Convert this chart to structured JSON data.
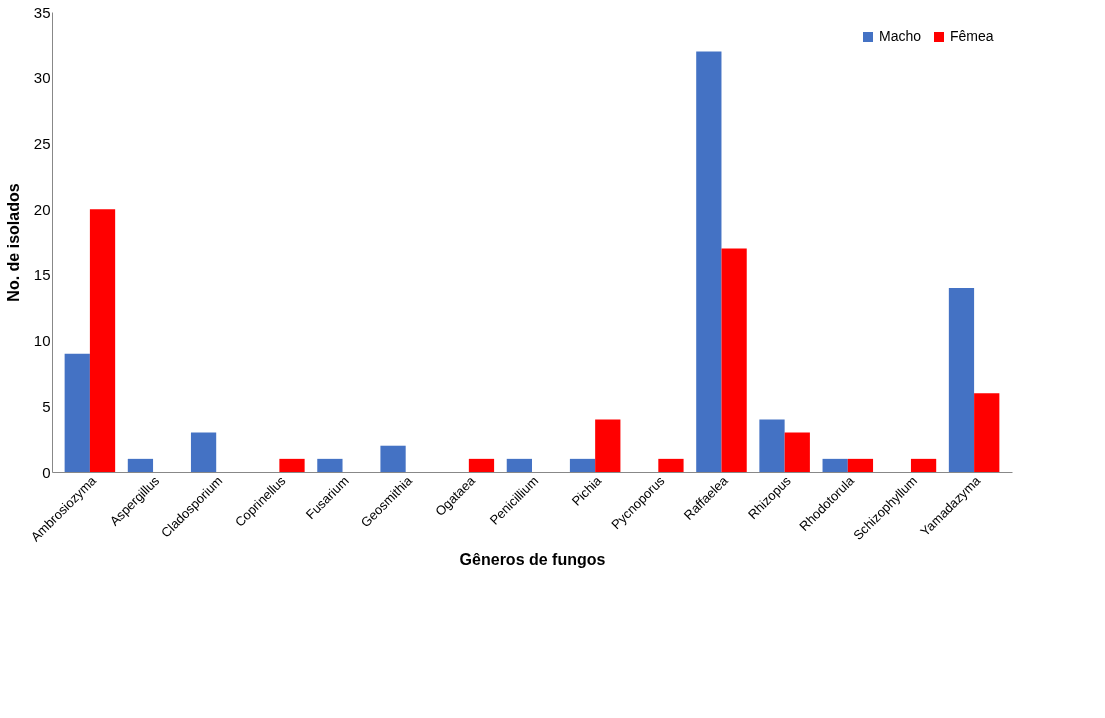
{
  "chart_data": {
    "type": "bar",
    "xlabel": "Gêneros de fungos",
    "ylabel": "No. de isolados",
    "categories": [
      "Ambrosiozyma",
      "Aspergillus",
      "Cladosporium",
      "Coprinellus",
      "Fusarium",
      "Geosmithia",
      "Ogataea",
      "Penicillium",
      "Pichia",
      "Pycnoporus",
      "Raffaelea",
      "Rhizopus",
      "Rhodotorula",
      "Schizophyllum",
      "Yamadazyma"
    ],
    "series": [
      {
        "name": "Macho",
        "color": "#4472c4",
        "values": [
          9,
          1,
          3,
          0,
          1,
          2,
          0,
          1,
          1,
          0,
          32,
          4,
          1,
          0,
          14
        ]
      },
      {
        "name": "Fêmea",
        "color": "#ff0000",
        "values": [
          20,
          0,
          0,
          1,
          0,
          0,
          1,
          0,
          4,
          1,
          17,
          3,
          1,
          1,
          6
        ]
      }
    ],
    "ylim": [
      0,
      35
    ],
    "yticks": [
      0,
      5,
      10,
      15,
      20,
      25,
      30,
      35
    ],
    "grid": false,
    "legend": "top right"
  }
}
